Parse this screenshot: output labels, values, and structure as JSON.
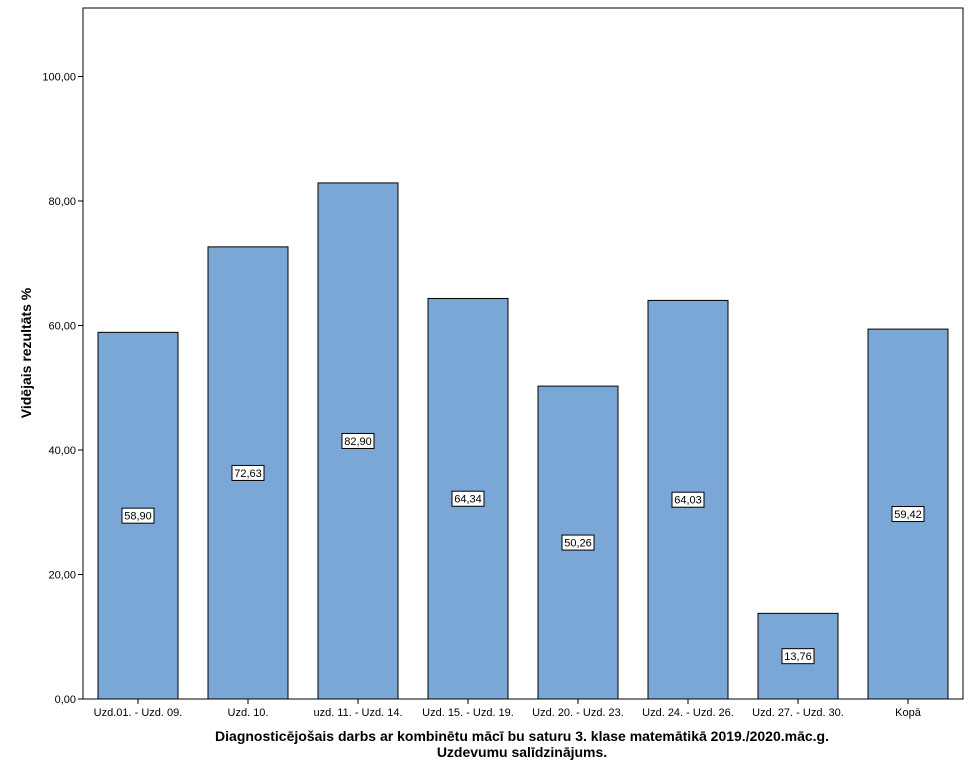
{
  "chart_data": {
    "type": "bar",
    "categories": [
      "Uzd.01. - Uzd. 09.",
      "Uzd. 10.",
      "uzd. 11. - Uzd. 14.",
      "Uzd. 15. - Uzd. 19.",
      "Uzd. 20. - Uzd. 23.",
      "Uzd. 24. - Uzd. 26.",
      "Uzd. 27. - Uzd. 30.",
      "Kopā"
    ],
    "values": [
      58.9,
      72.63,
      82.9,
      64.34,
      50.26,
      64.03,
      13.76,
      59.42
    ],
    "data_labels": [
      "58,90",
      "72,63",
      "82,90",
      "64,34",
      "50,26",
      "64,03",
      "13,76",
      "59,42"
    ],
    "yticks": [
      0,
      20,
      40,
      60,
      80,
      100
    ],
    "ytick_labels": [
      "0,00",
      "20,00",
      "40,00",
      "60,00",
      "80,00",
      "100,00"
    ],
    "ylim": [
      0,
      111
    ],
    "ylabel": "Vidējais rezultāts %",
    "xlabel_line1": "Diagnosticējošais darbs ar kombinētu mācī bu saturu 3. klase matemātikā 2019./2020.māc.g.",
    "xlabel_line2": "Uzdevumu salīdzinājums.",
    "grid": false,
    "bar_color": "#7ba7d6",
    "bar_edge_color": "#000000"
  }
}
